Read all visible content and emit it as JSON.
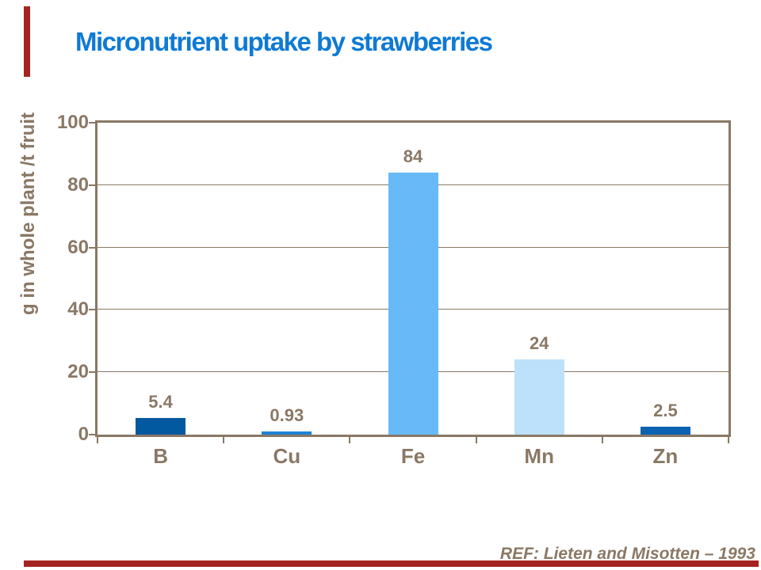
{
  "slide": {
    "reference": "REF:  Lieten and Misotten – 1993",
    "accent_color": "#a52422",
    "background_color": "#ffffff"
  },
  "chart_data": {
    "type": "bar",
    "title": "Micronutrient uptake by strawberries",
    "title_color": "#0e7ad4",
    "categories": [
      "B",
      "Cu",
      "Fe",
      "Mn",
      "Zn"
    ],
    "values": [
      5.4,
      0.93,
      84,
      24,
      2.5
    ],
    "value_labels": [
      "5.4",
      "0.93",
      "84",
      "24",
      "2.5"
    ],
    "bar_colors": [
      "#0259a0",
      "#1e83d6",
      "#67baf7",
      "#bee1fb",
      "#0b63b1"
    ],
    "xlabel": "",
    "ylabel": "g in whole plant /t fruit",
    "ylim": [
      0,
      100
    ],
    "yticks": [
      0,
      20,
      40,
      60,
      80,
      100
    ],
    "grid": true,
    "legend": false,
    "axis_text_color": "#8a7865",
    "frame_color": "#8a7865"
  }
}
